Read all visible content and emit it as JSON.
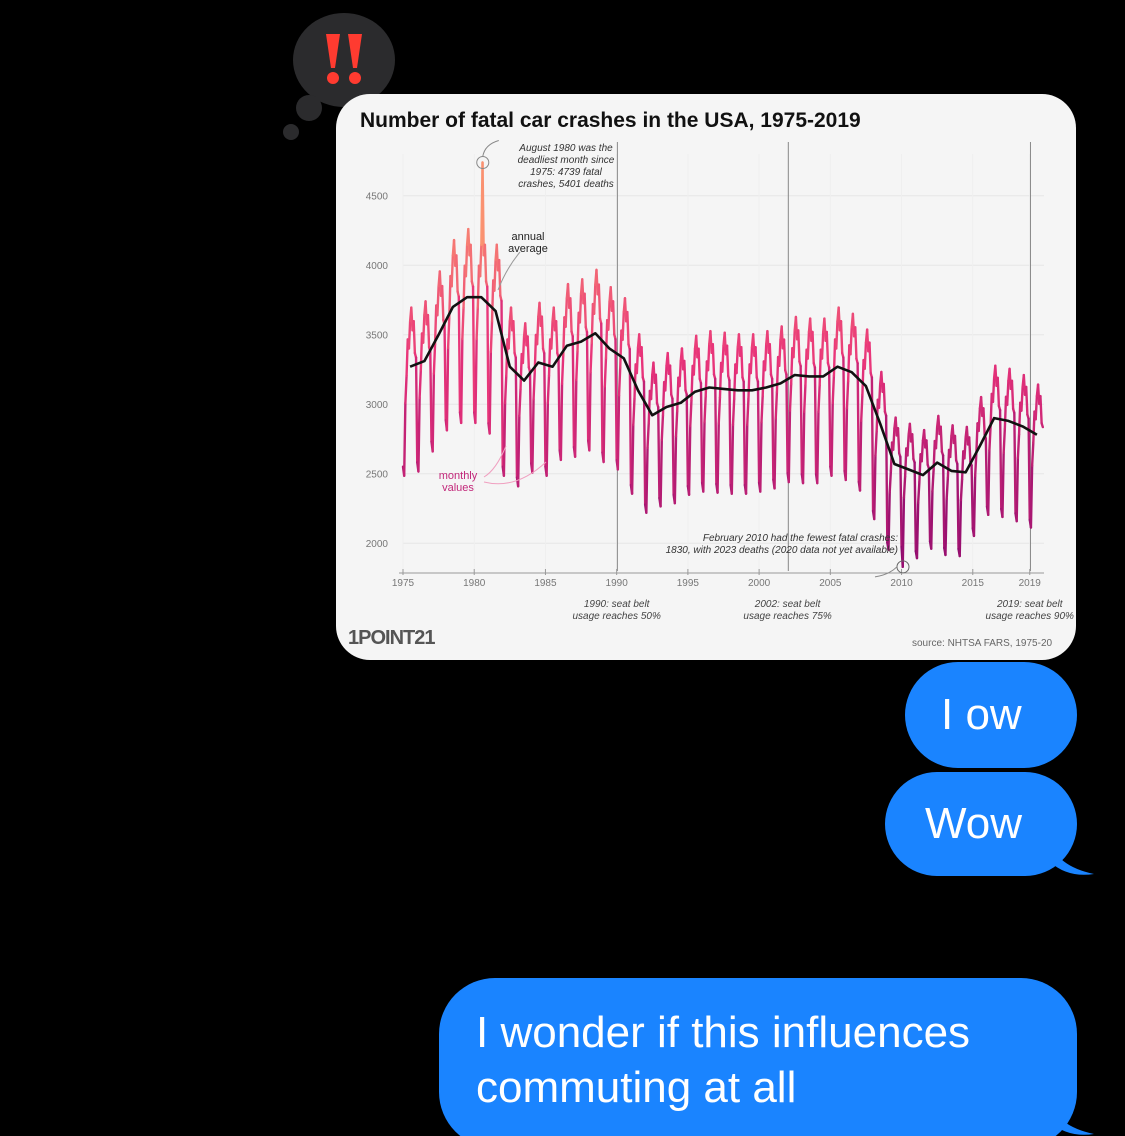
{
  "tapback": {
    "icon": "double-exclamation-icon",
    "color": "#ff3b30"
  },
  "chart_image": {
    "logo": "1POINT21",
    "chart_data": {
      "type": "line",
      "title": "Number of fatal car crashes in the USA, 1975-2019",
      "x_ticks": [
        "1975",
        "1980",
        "1985",
        "1990",
        "1995",
        "2000",
        "2005",
        "2010",
        "2015",
        "2019"
      ],
      "y_ticks": [
        "2000",
        "2500",
        "3000",
        "3500",
        "4000",
        "4500"
      ],
      "ylim": [
        1800,
        4800
      ],
      "xlim": [
        1975,
        2020
      ],
      "grid": true,
      "series": [
        {
          "name": "annual average",
          "color": "#111111",
          "x": [
            1975,
            1976,
            1977,
            1978,
            1979,
            1980,
            1981,
            1982,
            1983,
            1984,
            1985,
            1986,
            1987,
            1988,
            1989,
            1990,
            1991,
            1992,
            1993,
            1994,
            1995,
            1996,
            1997,
            1998,
            1999,
            2000,
            2001,
            2002,
            2003,
            2004,
            2005,
            2006,
            2007,
            2008,
            2009,
            2010,
            2011,
            2012,
            2013,
            2014,
            2015,
            2016,
            2017,
            2018,
            2019
          ],
          "values": [
            3270,
            3310,
            3500,
            3700,
            3770,
            3770,
            3670,
            3270,
            3170,
            3300,
            3270,
            3420,
            3450,
            3510,
            3400,
            3330,
            3100,
            2920,
            2980,
            3010,
            3090,
            3120,
            3110,
            3100,
            3100,
            3120,
            3150,
            3210,
            3200,
            3200,
            3270,
            3230,
            3130,
            2860,
            2570,
            2530,
            2490,
            2580,
            2520,
            2510,
            2700,
            2900,
            2880,
            2840,
            2780
          ]
        },
        {
          "name": "monthly values",
          "color": "#e8337a",
          "note": "monthly series drawn as seasonal oscillation around annual average"
        }
      ],
      "annotations": [
        {
          "text_lines": [
            "August 1980 was the",
            "deadliest month since",
            "1975: 4739 fatal",
            "crashes, 5401 deaths"
          ],
          "x": 1980.6,
          "y": 4739
        },
        {
          "text_lines": [
            "annual",
            "average"
          ],
          "x": 1983.5,
          "y": 3900
        },
        {
          "text_lines": [
            "monthly",
            "values"
          ],
          "x": 1981.5,
          "y": 2270
        },
        {
          "text_lines": [
            "February 2010 had the fewest fatal crashes:",
            "1830, with 2023 deaths (2020 data not yet available)"
          ],
          "x": 2010.1,
          "y": 1830
        }
      ],
      "reference_lines": [
        {
          "x": 1990,
          "text_lines": [
            "1990: seat belt",
            "usage reaches 50%"
          ]
        },
        {
          "x": 2002,
          "text_lines": [
            "2002: seat belt",
            "usage reaches 75%"
          ]
        },
        {
          "x": 2019,
          "text_lines": [
            "2019: seat belt",
            "usage reaches 90%"
          ]
        }
      ],
      "source": "source: NHTSA FARS, 1975-20"
    }
  },
  "messages": [
    {
      "text": "I ow"
    },
    {
      "text": "Wow"
    },
    {
      "text": "I wonder if this influences commuting at all"
    }
  ]
}
